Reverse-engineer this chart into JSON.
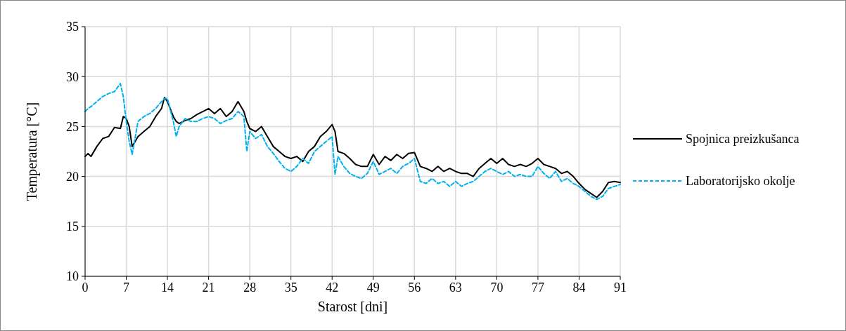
{
  "chart_data": {
    "type": "line",
    "xlabel": "Starost [dni]",
    "ylabel": "Temperatura [°C]",
    "xlim": [
      0,
      91
    ],
    "xticks": [
      0,
      7,
      14,
      21,
      28,
      35,
      42,
      49,
      56,
      63,
      70,
      77,
      84,
      91
    ],
    "ylim": [
      10,
      35
    ],
    "yticks": [
      10,
      15,
      20,
      25,
      30,
      35
    ],
    "grid": true,
    "legend": "right",
    "x": [
      0,
      0.5,
      1,
      2,
      3,
      4,
      5,
      6,
      6.5,
      7,
      7.5,
      8,
      9,
      10,
      11,
      12,
      13,
      13.5,
      14,
      15,
      15.5,
      16,
      17,
      18,
      19,
      20,
      21,
      22,
      23,
      24,
      25,
      26,
      27,
      27.5,
      28,
      29,
      30,
      31,
      32,
      33,
      34,
      35,
      36,
      37,
      38,
      39,
      40,
      41,
      42,
      42.5,
      43,
      44,
      45,
      46,
      47,
      48,
      49,
      50,
      51,
      52,
      53,
      54,
      55,
      56,
      57,
      58,
      59,
      60,
      61,
      62,
      63,
      64,
      65,
      66,
      67,
      68,
      69,
      70,
      71,
      72,
      73,
      74,
      75,
      76,
      77,
      78,
      79,
      80,
      81,
      82,
      83,
      84,
      85,
      86,
      87,
      88,
      89,
      90,
      91
    ],
    "series": [
      {
        "name": "Spojnica preizkušanca",
        "color": "#000000",
        "line_style": "solid",
        "values": [
          22.0,
          22.3,
          22.0,
          23.0,
          23.8,
          24.0,
          24.9,
          24.8,
          26.0,
          25.8,
          25.0,
          23.0,
          24.0,
          24.5,
          25.0,
          26.0,
          26.8,
          27.9,
          27.5,
          26.0,
          25.5,
          25.3,
          25.6,
          25.8,
          26.2,
          26.5,
          26.8,
          26.3,
          26.8,
          26.0,
          26.5,
          27.5,
          26.5,
          25.5,
          24.8,
          24.5,
          25.0,
          24.0,
          23.0,
          22.5,
          22.0,
          21.8,
          22.0,
          21.5,
          22.5,
          23.0,
          24.0,
          24.5,
          25.2,
          24.5,
          22.5,
          22.3,
          21.8,
          21.2,
          21.0,
          21.0,
          22.2,
          21.2,
          22.0,
          21.6,
          22.2,
          21.8,
          22.3,
          22.4,
          21.0,
          20.8,
          20.5,
          21.0,
          20.5,
          20.8,
          20.5,
          20.3,
          20.3,
          20.0,
          20.8,
          21.3,
          21.8,
          21.3,
          21.8,
          21.2,
          21.0,
          21.2,
          21.0,
          21.3,
          21.8,
          21.2,
          21.0,
          20.8,
          20.3,
          20.5,
          20.0,
          19.3,
          18.7,
          18.3,
          17.9,
          18.5,
          19.4,
          19.5,
          19.4
        ]
      },
      {
        "name": "Laboratorijsko okolje",
        "color": "#00b0f0",
        "line_style": "dashed",
        "values": [
          26.5,
          26.8,
          27.0,
          27.5,
          28.0,
          28.3,
          28.5,
          29.3,
          28.0,
          25.5,
          23.5,
          22.2,
          25.5,
          26.0,
          26.3,
          26.8,
          27.5,
          27.8,
          27.8,
          25.5,
          24.0,
          25.0,
          25.8,
          25.5,
          25.5,
          25.8,
          26.0,
          25.8,
          25.3,
          25.6,
          25.8,
          26.5,
          26.0,
          22.5,
          24.5,
          23.8,
          24.2,
          23.0,
          22.3,
          21.5,
          20.8,
          20.5,
          21.0,
          21.8,
          21.3,
          22.5,
          23.0,
          23.5,
          24.0,
          20.2,
          22.0,
          21.0,
          20.3,
          20.0,
          19.8,
          20.3,
          21.5,
          20.2,
          20.5,
          20.8,
          20.3,
          21.0,
          21.3,
          21.8,
          19.5,
          19.3,
          19.8,
          19.3,
          19.5,
          19.0,
          19.5,
          19.0,
          19.3,
          19.5,
          20.0,
          20.5,
          20.8,
          20.5,
          20.2,
          20.5,
          20.0,
          20.2,
          20.0,
          20.0,
          21.0,
          20.3,
          19.8,
          20.5,
          19.5,
          19.8,
          19.3,
          19.0,
          18.5,
          18.0,
          17.7,
          18.0,
          18.8,
          19.0,
          19.2
        ]
      }
    ]
  }
}
